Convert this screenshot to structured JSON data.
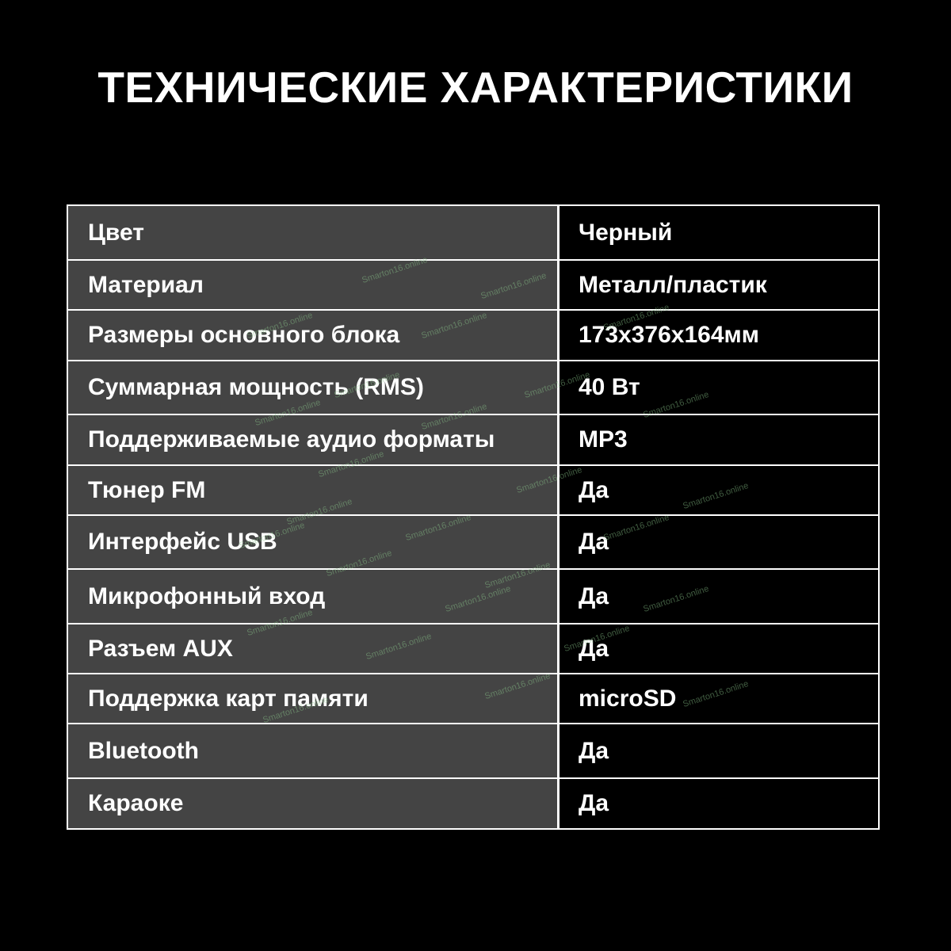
{
  "title": "ТЕХНИЧЕСКИЕ ХАРАКТЕРИСТИКИ",
  "watermark": "Smarton16.online",
  "specs": [
    {
      "label": "Цвет",
      "value": "Черный"
    },
    {
      "label": "Материал",
      "value": "Металл/пластик"
    },
    {
      "label": "Размеры основного блока",
      "value": "173x376x164мм"
    },
    {
      "label": "Суммарная мощность (RMS)",
      "value": "40 Вт"
    },
    {
      "label": "Поддерживаемые аудио форматы",
      "value": "MP3"
    },
    {
      "label": "Тюнер FM",
      "value": "Да"
    },
    {
      "label": "Интерфейс USB",
      "value": "Да"
    },
    {
      "label": "Микрофонный вход",
      "value": "Да"
    },
    {
      "label": "Разъем AUX",
      "value": "Да"
    },
    {
      "label": "Поддержка карт памяти",
      "value": "microSD"
    },
    {
      "label": "Bluetooth",
      "value": "Да"
    },
    {
      "label": "Караоке",
      "value": "Да"
    }
  ]
}
